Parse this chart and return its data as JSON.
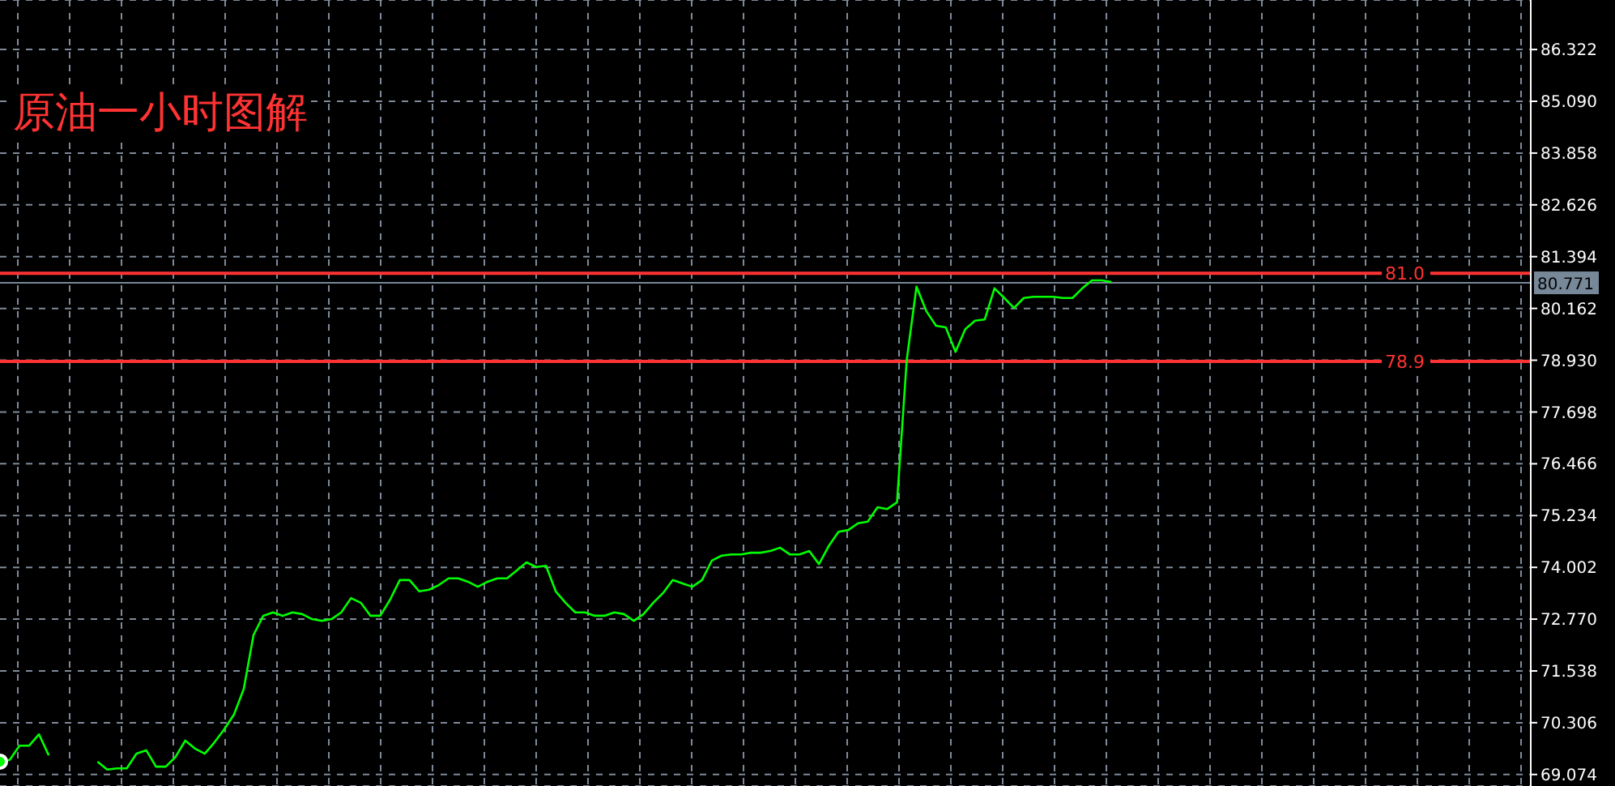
{
  "chart_data": {
    "type": "line",
    "title": "原油一小时图解",
    "categories": [
      null,
      null,
      null,
      null,
      null,
      null,
      null,
      null,
      null,
      null,
      null,
      null,
      null,
      null,
      null,
      null,
      null,
      null,
      null,
      null,
      null,
      null,
      null,
      null,
      null,
      null,
      null,
      null,
      null,
      null,
      null,
      null,
      null,
      null,
      null,
      null,
      null,
      null,
      null,
      null,
      null,
      null,
      null,
      null,
      null,
      null,
      null,
      null,
      null,
      null,
      null,
      null,
      null,
      null,
      null,
      null,
      null,
      null,
      null,
      null,
      null,
      null,
      null,
      null,
      null,
      null,
      null,
      null,
      null,
      null,
      null,
      null,
      null,
      null,
      null,
      null,
      null,
      null,
      null,
      null,
      null,
      null,
      null,
      null,
      null,
      null,
      null,
      null,
      null,
      null,
      null,
      null,
      null,
      null,
      null,
      null,
      null,
      null,
      null,
      null,
      null,
      null,
      null,
      null,
      null,
      null,
      null,
      null,
      null,
      null,
      null,
      null,
      null,
      null,
      null,
      null,
      null,
      null,
      null,
      null,
      null,
      null,
      null,
      null,
      null,
      null,
      null,
      null,
      null,
      null,
      null,
      null,
      null,
      null,
      null,
      null,
      null,
      null,
      null,
      null,
      null,
      null,
      null,
      null,
      null,
      null,
      null,
      null,
      null,
      null,
      null,
      null,
      null,
      null,
      null,
      null,
      null,
      null
    ],
    "series": [
      {
        "color": "#00ff00",
        "values": [
          69.38,
          69.42,
          69.76,
          69.76,
          70.03,
          69.53,
          null,
          null,
          null,
          null,
          null,
          null,
          null,
          null,
          null,
          null,
          null,
          null,
          null,
          null,
          null,
          null,
          null,
          null,
          null,
          null,
          null,
          null,
          null,
          null,
          null,
          null,
          null,
          null,
          null,
          null,
          null,
          null,
          null,
          null,
          null,
          null,
          null,
          null,
          null,
          null,
          null,
          null,
          null,
          null,
          null,
          null,
          null,
          null,
          null,
          null,
          null,
          null,
          null,
          null,
          null,
          null,
          null,
          null,
          null,
          null,
          null,
          null,
          null,
          null,
          null,
          null,
          null,
          null,
          null,
          null,
          null,
          null,
          null,
          null,
          null,
          null,
          null,
          null,
          null,
          null,
          null,
          null,
          null,
          null,
          null,
          null,
          null,
          null,
          null,
          null,
          null,
          null,
          null,
          null,
          null,
          null,
          null,
          null,
          null,
          null,
          null,
          null,
          null,
          null,
          null,
          null,
          null,
          null,
          null,
          null,
          null,
          null,
          null,
          null,
          null,
          null,
          null,
          null,
          null,
          null,
          null,
          null,
          null,
          null,
          null,
          null,
          null,
          null,
          null,
          null,
          null,
          null,
          null,
          null,
          null,
          null,
          null,
          null,
          null,
          null,
          null,
          null,
          null,
          null,
          null,
          null,
          null,
          null,
          null,
          null,
          null,
          null
        ]
      },
      {
        "color": "#00ff00",
        "values": [
          null,
          null,
          null,
          null,
          null,
          null,
          null,
          null,
          null,
          null,
          69.38,
          69.19,
          69.22,
          69.22,
          69.57,
          69.65,
          69.26,
          69.26,
          69.49,
          69.88,
          69.69,
          69.57,
          69.84,
          70.15,
          70.5,
          71.11,
          72.39,
          72.85,
          72.93,
          72.85,
          72.93,
          72.89,
          72.77,
          72.73,
          72.77,
          72.93,
          73.27,
          73.16,
          72.85,
          72.85,
          73.23,
          73.7,
          73.7,
          73.43,
          73.47,
          73.58,
          73.74,
          73.74,
          73.66,
          73.54,
          73.66,
          73.74,
          73.74,
          73.93,
          74.12,
          74.01,
          74.04,
          73.43,
          73.16,
          72.93,
          72.93,
          72.85,
          72.85,
          72.93,
          72.89,
          72.73,
          72.89,
          73.16,
          73.39,
          73.7,
          73.62,
          73.54,
          73.7,
          74.16,
          74.28,
          74.31,
          74.31,
          74.35,
          74.35,
          74.39,
          74.47,
          74.31,
          74.31,
          74.39,
          74.08,
          74.51,
          74.85,
          74.89,
          75.05,
          75.09,
          75.43,
          75.39,
          75.55,
          78.94,
          80.68,
          80.1,
          79.75,
          79.71,
          79.13,
          79.67,
          79.87,
          79.9,
          80.64,
          80.41,
          80.17,
          80.41,
          80.44,
          80.44,
          80.44,
          80.41,
          80.41,
          80.64,
          80.83,
          80.83,
          80.79,
          null,
          null,
          null,
          null,
          null,
          null,
          null,
          null,
          null,
          null,
          null,
          null,
          null,
          null,
          null,
          null,
          null,
          null,
          null,
          null,
          null,
          null,
          null,
          null,
          null,
          null,
          null,
          null,
          null,
          null,
          null,
          null,
          null,
          null,
          null,
          null,
          null,
          null,
          null,
          null,
          null,
          null,
          null
        ]
      }
    ],
    "ylim": [
      68.8,
      87.5
    ],
    "yticks": [
      69.074,
      70.306,
      71.538,
      {
        "value": 72.77,
        "label": "72.770"
      },
      74.002,
      75.234,
      76.466,
      77.698,
      {
        "value": 78.93,
        "label": "78.930"
      },
      80.162,
      81.394,
      82.626,
      83.858,
      {
        "value": 85.09,
        "label": "85.090"
      },
      86.322
    ],
    "grid": true,
    "marker": "none",
    "line_style": "solid",
    "legend": false,
    "ref_lines": [
      {
        "axis": "y",
        "value": 81.0,
        "label": "81.0",
        "color": "#ff3333"
      },
      {
        "axis": "y",
        "value": 78.9,
        "label": "78.9",
        "color": "#ff3333"
      },
      {
        "axis": "y",
        "value": 80.771,
        "label": "80.771",
        "color": "#778899"
      }
    ]
  }
}
